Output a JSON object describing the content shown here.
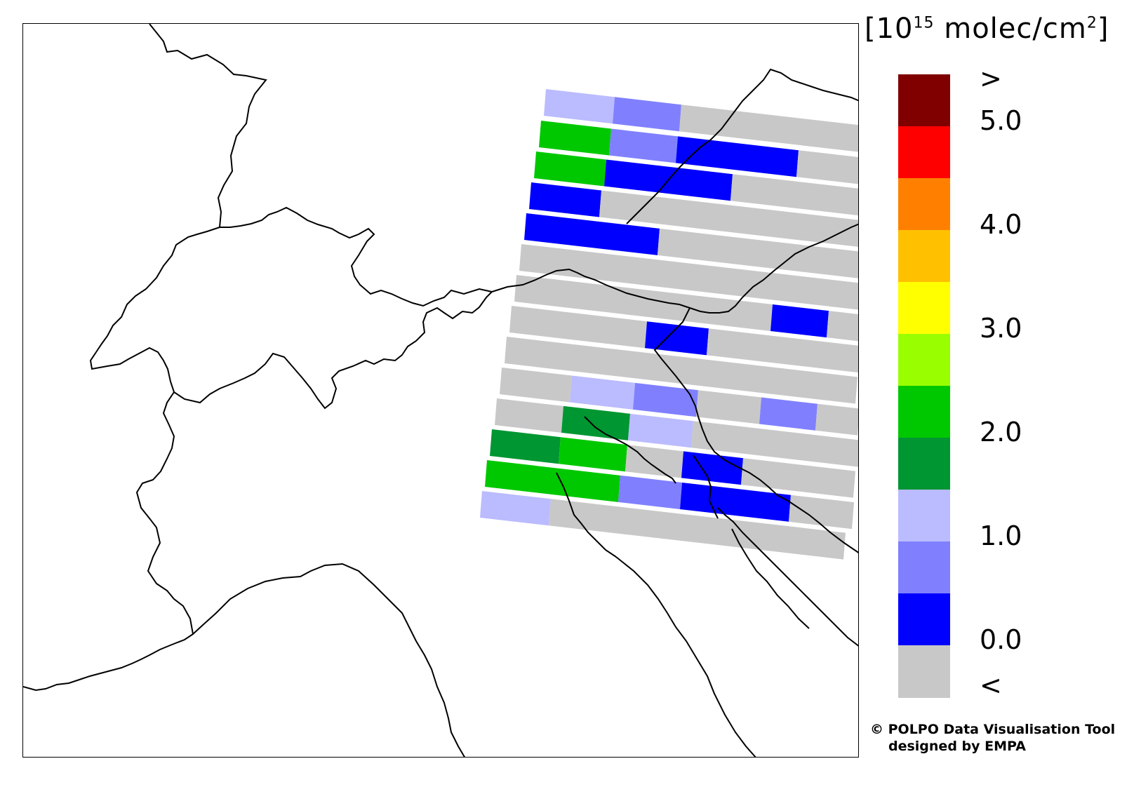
{
  "legend": {
    "unit_prefix": "[10",
    "unit_exp": "15",
    "unit_mid": " molec/cm",
    "unit_exp2": "2",
    "unit_suffix": "]",
    "labels": [
      ">",
      "5.0",
      "4.0",
      "3.0",
      "2.0",
      "1.0",
      "0.0",
      "<"
    ],
    "colors": [
      "#800000",
      "#ff0000",
      "#ff8000",
      "#ffc000",
      "#ffff00",
      "#99ff00",
      "#00c800",
      "#009632",
      "#bbbbff",
      "#8080ff",
      "#0000ff",
      "#c8c8c8"
    ]
  },
  "credit": {
    "line1": "© POLPO Data Visualisation Tool",
    "line2": "designed by EMPA"
  },
  "swath_colors": {
    "gray": "#c8c8c8",
    "blue": "#0000ff",
    "mid_blue": "#8080ff",
    "light_blue": "#bbbbff",
    "green": "#00c800",
    "dark_green": "#009632"
  }
}
